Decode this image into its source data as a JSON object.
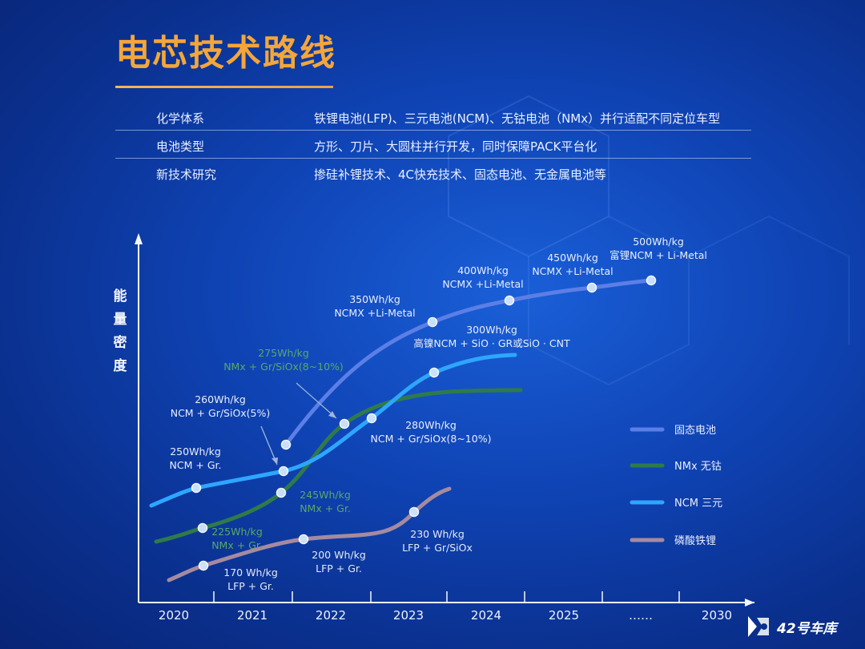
{
  "title": "电芯技术路线",
  "spec_rows": [
    {
      "key": "化学体系",
      "value": "铁锂电池(LFP)、三元电池(NCM)、无钴电池（NMx）并行适配不同定位车型"
    },
    {
      "key": "电池类型",
      "value": "方形、刀片、大圆柱并行开发，同时保障PACK平台化"
    },
    {
      "key": "新技术研究",
      "value": "掺硅补锂技术、4C快充技术、固态电池、无金属电池等"
    }
  ],
  "watermark": {
    "text": "42号车库",
    "icon": "42-garage-logo-icon"
  },
  "colors": {
    "solid": "#5b7fe6",
    "nmx": "#2f7a4a",
    "ncm": "#2ea6ff",
    "lfp": "#a58aa0",
    "title": "#f3a63a"
  },
  "chart_data": {
    "type": "line",
    "ylabel": "能量密度",
    "xlabel": "",
    "x_ticks": [
      "2020",
      "2021",
      "2022",
      "2023",
      "2024",
      "2025",
      "……",
      "2030"
    ],
    "legend": {
      "placement": "right"
    },
    "series": [
      {
        "key": "solid",
        "name": "固态电池",
        "points": [
          {
            "x": 2021.42,
            "label": ""
          },
          {
            "x": 2023.3,
            "label": "350Wh/kg\nNCMX +Li-Metal"
          },
          {
            "x": 2024.3,
            "label": "400Wh/kg\nNCMX +Li-Metal"
          },
          {
            "x": 2025.35,
            "label": "450Wh/kg\nNCMX +Li-Metal"
          },
          {
            "x": 2026.1,
            "label": "500Wh/kg\n富锂NCM + Li-Metal"
          }
        ]
      },
      {
        "key": "nmx",
        "name": "NMx 无钴",
        "points": [
          {
            "x": 2020.38,
            "label": "225Wh/kg\nNMx + Gr."
          },
          {
            "x": 2021.37,
            "label": "245Wh/kg\nNMx + Gr."
          },
          {
            "x": 2022.17,
            "label": "275Wh/kg\nNMx + Gr/SiOx(8~10%)"
          }
        ]
      },
      {
        "key": "ncm",
        "name": "NCM 三元",
        "points": [
          {
            "x": 2020.27,
            "label": "250Wh/kg\nNCM + Gr."
          },
          {
            "x": 2021.4,
            "label": "260Wh/kg\nNCM + Gr/SiOx(5%)"
          },
          {
            "x": 2022.5,
            "label": "280Wh/kg\nNCM + Gr/SiOx(8~10%)"
          },
          {
            "x": 2023.32,
            "label": "300Wh/kg\n高镍NCM + SiO · GR或SiO · CNT"
          }
        ]
      },
      {
        "key": "lfp",
        "name": "磷酸铁锂",
        "points": [
          {
            "x": 2020.37,
            "label": "170 Wh/kg\nLFP + Gr."
          },
          {
            "x": 2021.63,
            "label": "200 Wh/kg\nLFP + Gr."
          },
          {
            "x": 2023.08,
            "label": "230 Wh/kg\nLFP + Gr/SiOx"
          }
        ]
      }
    ]
  }
}
